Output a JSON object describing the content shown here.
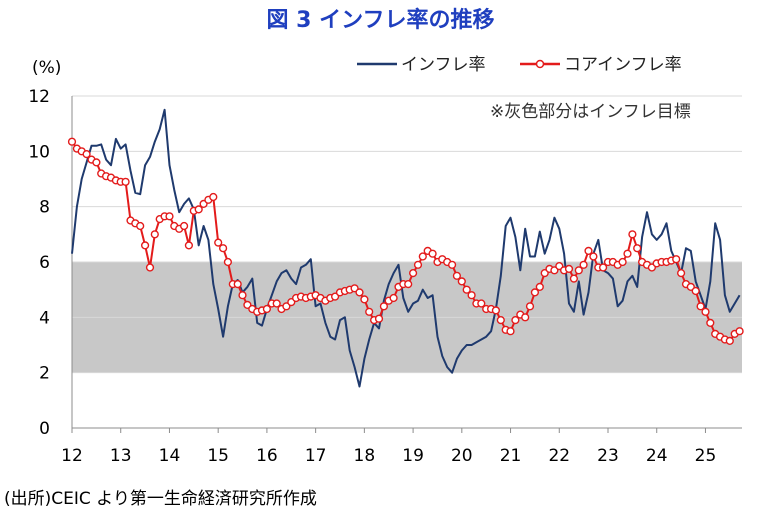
{
  "chart_data": {
    "type": "line",
    "title": "図 3  インフレ率の推移",
    "ylabel": "(%)",
    "ylim": [
      0,
      12
    ],
    "yticks": [
      "0",
      "2",
      "4",
      "6",
      "8",
      "10",
      "12"
    ],
    "xlim": [
      12,
      25.75
    ],
    "xticks": [
      "12",
      "13",
      "14",
      "15",
      "16",
      "17",
      "18",
      "19",
      "20",
      "21",
      "22",
      "23",
      "24",
      "25"
    ],
    "band": {
      "low": 2,
      "high": 6,
      "color": "#c8c8c8"
    },
    "annotation": "※灰色部分はインフレ目標",
    "legend_position": "top-right",
    "grid": "horizontal",
    "series": [
      {
        "name": "インフレ率",
        "color": "#1f3a6e",
        "marker": "none",
        "points": [
          [
            12.0,
            6.3
          ],
          [
            12.1,
            8.0
          ],
          [
            12.2,
            9.0
          ],
          [
            12.3,
            9.6
          ],
          [
            12.4,
            10.2
          ],
          [
            12.5,
            10.2
          ],
          [
            12.6,
            10.25
          ],
          [
            12.7,
            9.7
          ],
          [
            12.8,
            9.5
          ],
          [
            12.9,
            10.45
          ],
          [
            13.0,
            10.1
          ],
          [
            13.1,
            10.25
          ],
          [
            13.2,
            9.3
          ],
          [
            13.3,
            8.5
          ],
          [
            13.4,
            8.45
          ],
          [
            13.5,
            9.5
          ],
          [
            13.6,
            9.8
          ],
          [
            13.7,
            10.35
          ],
          [
            13.8,
            10.8
          ],
          [
            13.9,
            11.5
          ],
          [
            14.0,
            9.5
          ],
          [
            14.1,
            8.6
          ],
          [
            14.2,
            7.8
          ],
          [
            14.3,
            8.1
          ],
          [
            14.4,
            8.3
          ],
          [
            14.5,
            7.9
          ],
          [
            14.6,
            6.6
          ],
          [
            14.7,
            7.3
          ],
          [
            14.8,
            6.8
          ],
          [
            14.9,
            5.2
          ],
          [
            15.0,
            4.3
          ],
          [
            15.1,
            3.3
          ],
          [
            15.2,
            4.4
          ],
          [
            15.3,
            5.2
          ],
          [
            15.4,
            5.35
          ],
          [
            15.5,
            4.9
          ],
          [
            15.6,
            5.1
          ],
          [
            15.7,
            5.4
          ],
          [
            15.8,
            3.8
          ],
          [
            15.9,
            3.7
          ],
          [
            16.0,
            4.3
          ],
          [
            16.1,
            4.8
          ],
          [
            16.2,
            5.3
          ],
          [
            16.3,
            5.6
          ],
          [
            16.4,
            5.7
          ],
          [
            16.5,
            5.4
          ],
          [
            16.6,
            5.2
          ],
          [
            16.7,
            5.8
          ],
          [
            16.8,
            5.9
          ],
          [
            16.9,
            6.1
          ],
          [
            17.0,
            4.4
          ],
          [
            17.1,
            4.5
          ],
          [
            17.2,
            3.8
          ],
          [
            17.3,
            3.3
          ],
          [
            17.4,
            3.2
          ],
          [
            17.5,
            3.9
          ],
          [
            17.6,
            4.0
          ],
          [
            17.7,
            2.8
          ],
          [
            17.8,
            2.2
          ],
          [
            17.9,
            1.5
          ],
          [
            18.0,
            2.5
          ],
          [
            18.1,
            3.2
          ],
          [
            18.2,
            3.8
          ],
          [
            18.3,
            3.6
          ],
          [
            18.4,
            4.6
          ],
          [
            18.5,
            5.2
          ],
          [
            18.6,
            5.6
          ],
          [
            18.7,
            5.9
          ],
          [
            18.8,
            4.7
          ],
          [
            18.9,
            4.2
          ],
          [
            19.0,
            4.5
          ],
          [
            19.1,
            4.6
          ],
          [
            19.2,
            5.0
          ],
          [
            19.3,
            4.7
          ],
          [
            19.4,
            4.8
          ],
          [
            19.5,
            3.3
          ],
          [
            19.6,
            2.6
          ],
          [
            19.7,
            2.2
          ],
          [
            19.8,
            2.0
          ],
          [
            19.9,
            2.5
          ],
          [
            20.0,
            2.8
          ],
          [
            20.1,
            3.0
          ],
          [
            20.2,
            3.0
          ],
          [
            20.3,
            3.1
          ],
          [
            20.4,
            3.2
          ],
          [
            20.5,
            3.3
          ],
          [
            20.6,
            3.5
          ],
          [
            20.7,
            4.3
          ],
          [
            20.8,
            5.5
          ],
          [
            20.9,
            7.3
          ],
          [
            21.0,
            7.6
          ],
          [
            21.1,
            6.9
          ],
          [
            21.2,
            5.7
          ],
          [
            21.3,
            7.2
          ],
          [
            21.4,
            6.2
          ],
          [
            21.5,
            6.2
          ],
          [
            21.6,
            7.1
          ],
          [
            21.7,
            6.3
          ],
          [
            21.8,
            6.8
          ],
          [
            21.9,
            7.6
          ],
          [
            22.0,
            7.2
          ],
          [
            22.1,
            6.3
          ],
          [
            22.2,
            4.5
          ],
          [
            22.3,
            4.2
          ],
          [
            22.4,
            5.3
          ],
          [
            22.5,
            4.1
          ],
          [
            22.6,
            4.9
          ],
          [
            22.7,
            6.3
          ],
          [
            22.8,
            6.8
          ],
          [
            22.9,
            5.7
          ],
          [
            23.0,
            5.6
          ],
          [
            23.1,
            5.4
          ],
          [
            23.2,
            4.4
          ],
          [
            23.3,
            4.6
          ],
          [
            23.4,
            5.3
          ],
          [
            23.5,
            5.5
          ],
          [
            23.6,
            5.1
          ],
          [
            23.7,
            6.9
          ],
          [
            23.8,
            7.8
          ],
          [
            23.9,
            7.0
          ],
          [
            24.0,
            6.8
          ],
          [
            24.1,
            7.0
          ],
          [
            24.2,
            7.4
          ],
          [
            24.3,
            6.4
          ],
          [
            24.4,
            6.0
          ],
          [
            24.5,
            5.6
          ],
          [
            24.6,
            6.5
          ],
          [
            24.7,
            6.4
          ],
          [
            24.8,
            5.3
          ],
          [
            24.9,
            4.8
          ],
          [
            25.0,
            4.3
          ],
          [
            25.1,
            5.3
          ],
          [
            25.2,
            7.4
          ],
          [
            25.3,
            6.8
          ],
          [
            25.4,
            4.8
          ],
          [
            25.5,
            4.2
          ],
          [
            25.6,
            4.5
          ],
          [
            25.7,
            4.8
          ]
        ]
      },
      {
        "name": "コアインフレ率",
        "color": "#e31b1b",
        "marker": "circle",
        "points": [
          [
            12.0,
            10.35
          ],
          [
            12.1,
            10.1
          ],
          [
            12.2,
            10.0
          ],
          [
            12.3,
            9.9
          ],
          [
            12.4,
            9.7
          ],
          [
            12.5,
            9.6
          ],
          [
            12.6,
            9.2
          ],
          [
            12.7,
            9.1
          ],
          [
            12.8,
            9.05
          ],
          [
            12.9,
            8.95
          ],
          [
            13.0,
            8.9
          ],
          [
            13.1,
            8.9
          ],
          [
            13.2,
            7.5
          ],
          [
            13.3,
            7.4
          ],
          [
            13.4,
            7.3
          ],
          [
            13.5,
            6.6
          ],
          [
            13.6,
            5.8
          ],
          [
            13.7,
            7.0
          ],
          [
            13.8,
            7.55
          ],
          [
            13.9,
            7.65
          ],
          [
            14.0,
            7.65
          ],
          [
            14.1,
            7.3
          ],
          [
            14.2,
            7.2
          ],
          [
            14.3,
            7.3
          ],
          [
            14.4,
            6.6
          ],
          [
            14.5,
            7.85
          ],
          [
            14.6,
            7.9
          ],
          [
            14.7,
            8.1
          ],
          [
            14.8,
            8.25
          ],
          [
            14.9,
            8.35
          ],
          [
            15.0,
            6.7
          ],
          [
            15.1,
            6.5
          ],
          [
            15.2,
            6.0
          ],
          [
            15.3,
            5.2
          ],
          [
            15.4,
            5.2
          ],
          [
            15.5,
            4.8
          ],
          [
            15.6,
            4.45
          ],
          [
            15.7,
            4.3
          ],
          [
            15.8,
            4.2
          ],
          [
            15.9,
            4.25
          ],
          [
            16.0,
            4.3
          ],
          [
            16.1,
            4.5
          ],
          [
            16.2,
            4.5
          ],
          [
            16.3,
            4.3
          ],
          [
            16.4,
            4.4
          ],
          [
            16.5,
            4.55
          ],
          [
            16.6,
            4.7
          ],
          [
            16.7,
            4.75
          ],
          [
            16.8,
            4.7
          ],
          [
            16.9,
            4.75
          ],
          [
            17.0,
            4.8
          ],
          [
            17.1,
            4.7
          ],
          [
            17.2,
            4.6
          ],
          [
            17.3,
            4.7
          ],
          [
            17.4,
            4.75
          ],
          [
            17.5,
            4.9
          ],
          [
            17.6,
            4.95
          ],
          [
            17.7,
            5.0
          ],
          [
            17.8,
            5.05
          ],
          [
            17.9,
            4.9
          ],
          [
            18.0,
            4.65
          ],
          [
            18.1,
            4.2
          ],
          [
            18.2,
            3.9
          ],
          [
            18.3,
            3.95
          ],
          [
            18.4,
            4.4
          ],
          [
            18.5,
            4.6
          ],
          [
            18.6,
            4.7
          ],
          [
            18.7,
            5.1
          ],
          [
            18.8,
            5.2
          ],
          [
            18.9,
            5.2
          ],
          [
            19.0,
            5.6
          ],
          [
            19.1,
            5.9
          ],
          [
            19.2,
            6.2
          ],
          [
            19.3,
            6.4
          ],
          [
            19.4,
            6.3
          ],
          [
            19.5,
            6.0
          ],
          [
            19.6,
            6.1
          ],
          [
            19.7,
            6.0
          ],
          [
            19.8,
            5.9
          ],
          [
            19.9,
            5.5
          ],
          [
            20.0,
            5.3
          ],
          [
            20.1,
            5.0
          ],
          [
            20.2,
            4.8
          ],
          [
            20.3,
            4.5
          ],
          [
            20.4,
            4.5
          ],
          [
            20.5,
            4.3
          ],
          [
            20.6,
            4.3
          ],
          [
            20.7,
            4.25
          ],
          [
            20.8,
            3.9
          ],
          [
            20.9,
            3.55
          ],
          [
            21.0,
            3.5
          ],
          [
            21.1,
            3.9
          ],
          [
            21.2,
            4.1
          ],
          [
            21.3,
            4.0
          ],
          [
            21.4,
            4.4
          ],
          [
            21.5,
            4.9
          ],
          [
            21.6,
            5.1
          ],
          [
            21.7,
            5.6
          ],
          [
            21.8,
            5.75
          ],
          [
            21.9,
            5.7
          ],
          [
            22.0,
            5.85
          ],
          [
            22.1,
            5.7
          ],
          [
            22.2,
            5.75
          ],
          [
            22.3,
            5.4
          ],
          [
            22.4,
            5.7
          ],
          [
            22.5,
            5.9
          ],
          [
            22.6,
            6.4
          ],
          [
            22.7,
            6.2
          ],
          [
            22.8,
            5.8
          ],
          [
            22.9,
            5.8
          ],
          [
            23.0,
            6.0
          ],
          [
            23.1,
            6.0
          ],
          [
            23.2,
            5.9
          ],
          [
            23.3,
            6.0
          ],
          [
            23.4,
            6.3
          ],
          [
            23.5,
            7.0
          ],
          [
            23.6,
            6.5
          ],
          [
            23.7,
            6.0
          ],
          [
            23.8,
            5.9
          ],
          [
            23.9,
            5.8
          ],
          [
            24.0,
            5.95
          ],
          [
            24.1,
            6.0
          ],
          [
            24.2,
            6.0
          ],
          [
            24.3,
            6.05
          ],
          [
            24.4,
            6.1
          ],
          [
            24.5,
            5.6
          ],
          [
            24.6,
            5.2
          ],
          [
            24.7,
            5.1
          ],
          [
            24.8,
            4.95
          ],
          [
            24.9,
            4.4
          ],
          [
            25.0,
            4.2
          ],
          [
            25.1,
            3.8
          ],
          [
            25.2,
            3.4
          ],
          [
            25.3,
            3.3
          ],
          [
            25.4,
            3.2
          ],
          [
            25.5,
            3.15
          ],
          [
            25.6,
            3.4
          ],
          [
            25.7,
            3.5
          ]
        ]
      }
    ]
  },
  "source_note": "(出所)CEIC より第一生命経済研究所作成"
}
